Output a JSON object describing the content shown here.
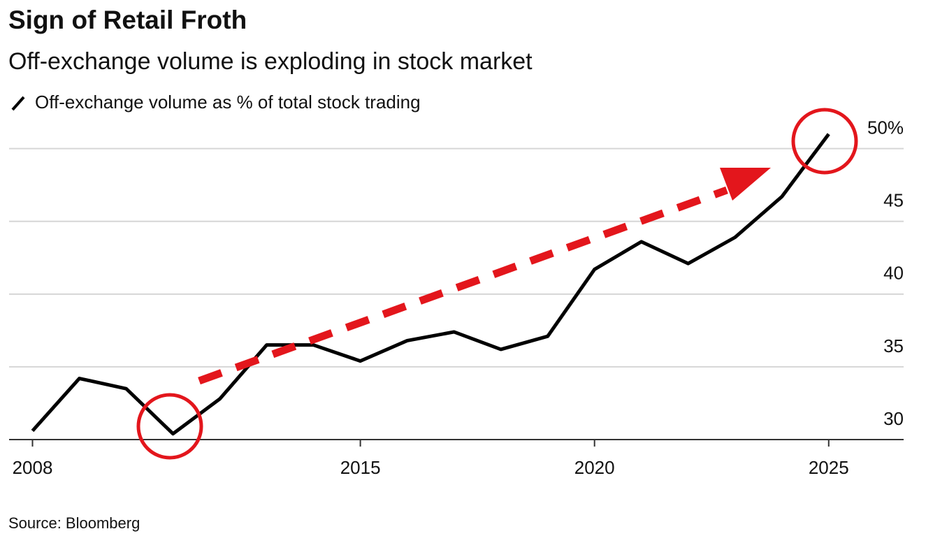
{
  "chart_data": {
    "type": "line",
    "title": "Sign of Retail Froth",
    "subtitle": "Off-exchange volume is exploding in stock market",
    "source": "Source: Bloomberg",
    "x": [
      2008,
      2009,
      2010,
      2011,
      2012,
      2013,
      2014,
      2015,
      2016,
      2017,
      2018,
      2019,
      2020,
      2021,
      2022,
      2023,
      2024,
      2025
    ],
    "series": [
      {
        "name": "Off-exchange volume as % of total stock trading",
        "color": "#000000",
        "values": [
          30.6,
          34.2,
          33.5,
          30.4,
          32.8,
          36.5,
          36.5,
          35.4,
          36.8,
          37.4,
          36.2,
          37.1,
          41.7,
          43.6,
          42.1,
          43.9,
          46.7,
          51.0
        ]
      }
    ],
    "xlim": [
      2007.5,
      2026.6
    ],
    "xticks": [
      2008,
      2015,
      2020,
      2025
    ],
    "ylim": [
      30,
      52
    ],
    "yticks": [
      30,
      35,
      40,
      45,
      {
        "value": 50,
        "label": "50%"
      }
    ],
    "grid": true
  }
}
